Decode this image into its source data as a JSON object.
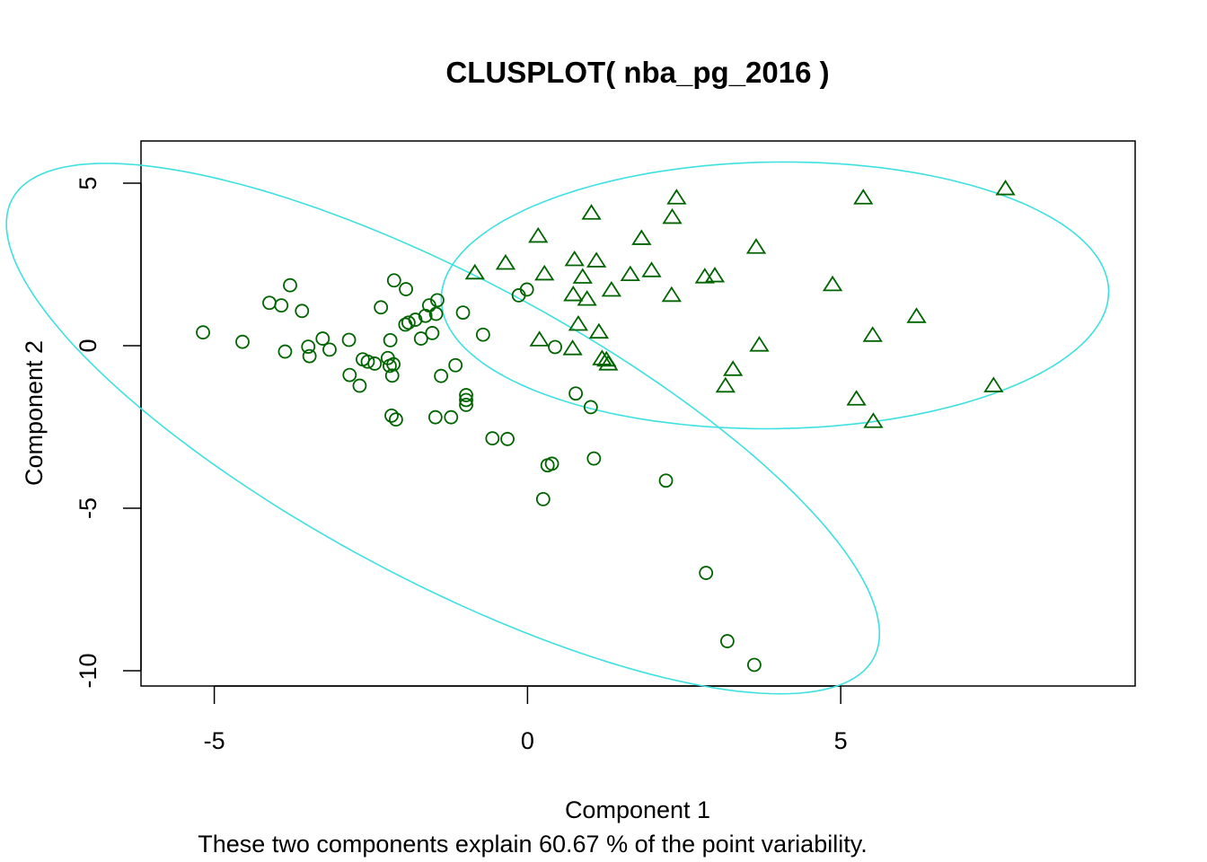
{
  "chart_data": {
    "type": "scatter",
    "title": "CLUSPLOT( nba_pg_2016 )",
    "xlabel": "Component 1",
    "ylabel": "Component 2",
    "subtitle": "These two components explain 60.67 % of the point variability.",
    "xlim": [
      -6.17,
      9.7
    ],
    "ylim": [
      -10.47,
      6.3
    ],
    "x_ticks": [
      {
        "value": -5,
        "label": "-5"
      },
      {
        "value": 0,
        "label": "0"
      },
      {
        "value": 5,
        "label": "5"
      }
    ],
    "y_ticks": [
      {
        "value": 5,
        "label": "5"
      },
      {
        "value": 0,
        "label": "0"
      },
      {
        "value": -5,
        "label": "-5"
      },
      {
        "value": -10,
        "label": "-10"
      }
    ],
    "grid": false,
    "legend": "none",
    "point_color": "#006400",
    "ellipse_color": "#3ee0e0",
    "clusters": [
      {
        "marker": "circle",
        "ellipse": {
          "cx": -1.35,
          "cy": -2.55,
          "semi_major": 10.12,
          "semi_minor": 3.57,
          "angle_deg": -50.8
        },
        "points": [
          [
            -5.18,
            0.41
          ],
          [
            -4.55,
            0.12
          ],
          [
            -4.12,
            1.32
          ],
          [
            -3.93,
            1.24
          ],
          [
            -3.87,
            -0.18
          ],
          [
            -3.79,
            1.86
          ],
          [
            -3.6,
            1.07
          ],
          [
            -3.5,
            -0.03
          ],
          [
            -3.48,
            -0.32
          ],
          [
            -3.27,
            0.22
          ],
          [
            -3.16,
            -0.12
          ],
          [
            -2.85,
            0.18
          ],
          [
            -2.84,
            -0.9
          ],
          [
            -2.68,
            -1.23
          ],
          [
            -2.63,
            -0.42
          ],
          [
            -2.55,
            -0.49
          ],
          [
            -2.44,
            -0.55
          ],
          [
            -2.34,
            1.18
          ],
          [
            -2.23,
            -0.38
          ],
          [
            -2.2,
            -0.62
          ],
          [
            -2.19,
            0.17
          ],
          [
            -2.17,
            -2.15
          ],
          [
            -2.16,
            -0.92
          ],
          [
            -2.14,
            -0.57
          ],
          [
            -2.13,
            2.01
          ],
          [
            -2.1,
            -2.27
          ],
          [
            -1.95,
            0.65
          ],
          [
            -1.94,
            1.74
          ],
          [
            -1.9,
            0.71
          ],
          [
            -1.79,
            0.8
          ],
          [
            -1.7,
            0.22
          ],
          [
            -1.63,
            0.92
          ],
          [
            -1.57,
            1.24
          ],
          [
            -1.52,
            0.39
          ],
          [
            -1.47,
            -2.2
          ],
          [
            -1.46,
            0.98
          ],
          [
            -1.44,
            1.4
          ],
          [
            -1.38,
            -0.93
          ],
          [
            -1.22,
            -2.2
          ],
          [
            -1.15,
            -0.6
          ],
          [
            -1.03,
            1.02
          ],
          [
            -0.98,
            -1.52
          ],
          [
            -0.98,
            -1.67
          ],
          [
            -0.98,
            -1.82
          ],
          [
            -0.71,
            0.34
          ],
          [
            -0.56,
            -2.85
          ],
          [
            -0.32,
            -2.87
          ],
          [
            -0.14,
            1.55
          ],
          [
            -0.01,
            1.73
          ],
          [
            0.25,
            -4.72
          ],
          [
            0.32,
            -3.68
          ],
          [
            0.39,
            -3.63
          ],
          [
            0.44,
            -0.04
          ],
          [
            0.77,
            -1.47
          ],
          [
            1.01,
            -1.89
          ],
          [
            1.06,
            -3.47
          ],
          [
            2.21,
            -4.15
          ],
          [
            2.85,
            -6.99
          ],
          [
            3.19,
            -9.09
          ],
          [
            3.62,
            -9.82
          ]
        ]
      },
      {
        "marker": "triangle",
        "ellipse": {
          "cx": 3.95,
          "cy": 1.55,
          "semi_major": 5.33,
          "semi_minor": 4.1,
          "angle_deg": 3.0
        },
        "points": [
          [
            -0.84,
            2.24
          ],
          [
            -0.35,
            2.54
          ],
          [
            0.17,
            3.37
          ],
          [
            0.19,
            0.18
          ],
          [
            0.27,
            2.21
          ],
          [
            0.72,
            -0.09
          ],
          [
            0.73,
            1.57
          ],
          [
            0.75,
            2.65
          ],
          [
            0.81,
            0.66
          ],
          [
            0.88,
            2.11
          ],
          [
            0.95,
            1.43
          ],
          [
            1.02,
            4.08
          ],
          [
            1.1,
            2.61
          ],
          [
            1.14,
            0.42
          ],
          [
            1.19,
            -0.4
          ],
          [
            1.26,
            -0.44
          ],
          [
            1.29,
            -0.56
          ],
          [
            1.34,
            1.71
          ],
          [
            1.64,
            2.19
          ],
          [
            1.82,
            3.3
          ],
          [
            1.98,
            2.31
          ],
          [
            2.3,
            1.55
          ],
          [
            2.31,
            3.95
          ],
          [
            2.38,
            4.55
          ],
          [
            2.83,
            2.12
          ],
          [
            2.99,
            2.15
          ],
          [
            3.16,
            -1.24
          ],
          [
            3.28,
            -0.73
          ],
          [
            3.65,
            3.03
          ],
          [
            3.7,
            0.02
          ],
          [
            4.87,
            1.88
          ],
          [
            5.25,
            -1.64
          ],
          [
            5.36,
            4.55
          ],
          [
            5.51,
            0.32
          ],
          [
            5.52,
            -2.33
          ],
          [
            6.21,
            0.9
          ],
          [
            7.44,
            -1.23
          ],
          [
            7.63,
            4.83
          ]
        ]
      }
    ]
  }
}
